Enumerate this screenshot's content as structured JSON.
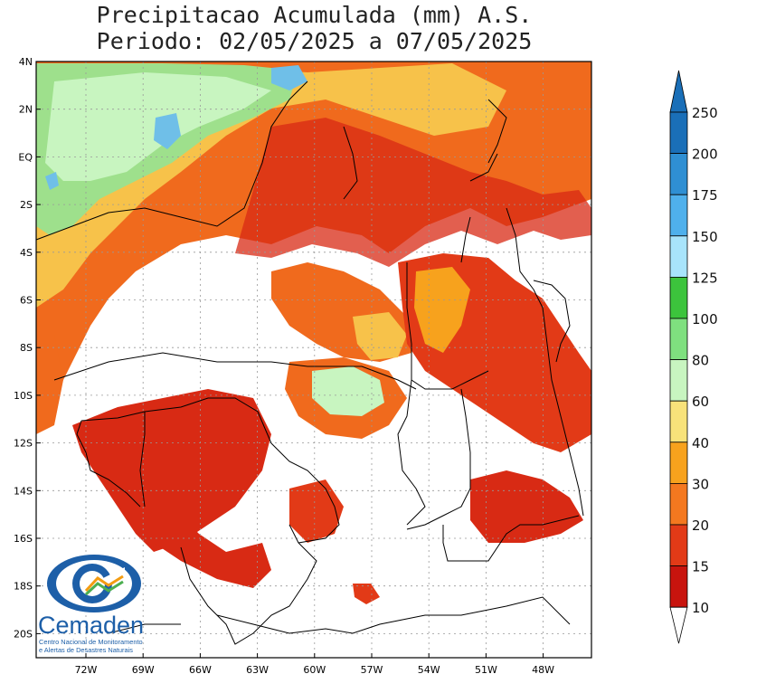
{
  "title": {
    "line1": "Precipitacao Acumulada (mm) A.S.",
    "line2": "Periodo: 02/05/2025 a 07/05/2025"
  },
  "map": {
    "lat_labels": [
      "4N",
      "2N",
      "EQ",
      "2S",
      "4S",
      "6S",
      "8S",
      "10S",
      "12S",
      "14S",
      "16S",
      "18S",
      "20S"
    ],
    "lon_labels": [
      "72W",
      "69W",
      "66W",
      "63W",
      "60W",
      "57W",
      "54W",
      "51W",
      "48W"
    ]
  },
  "colorbar": {
    "levels": [
      "250",
      "200",
      "175",
      "150",
      "125",
      "100",
      "80",
      "60",
      "40",
      "30",
      "20",
      "15",
      "10"
    ],
    "colors": [
      "#1a6fb8",
      "#2f8fd3",
      "#4fb0ec",
      "#a8e4fb",
      "#3cc43c",
      "#7fe07f",
      "#c8f5c0",
      "#f8e27a",
      "#f7a21d",
      "#f4781f",
      "#e23a17",
      "#c8140e"
    ]
  },
  "logo": {
    "name": "Cemaden",
    "subtitle_line1": "Centro Nacional de Monitoramento",
    "subtitle_line2": "e Alertas de Desastres Naturais"
  }
}
